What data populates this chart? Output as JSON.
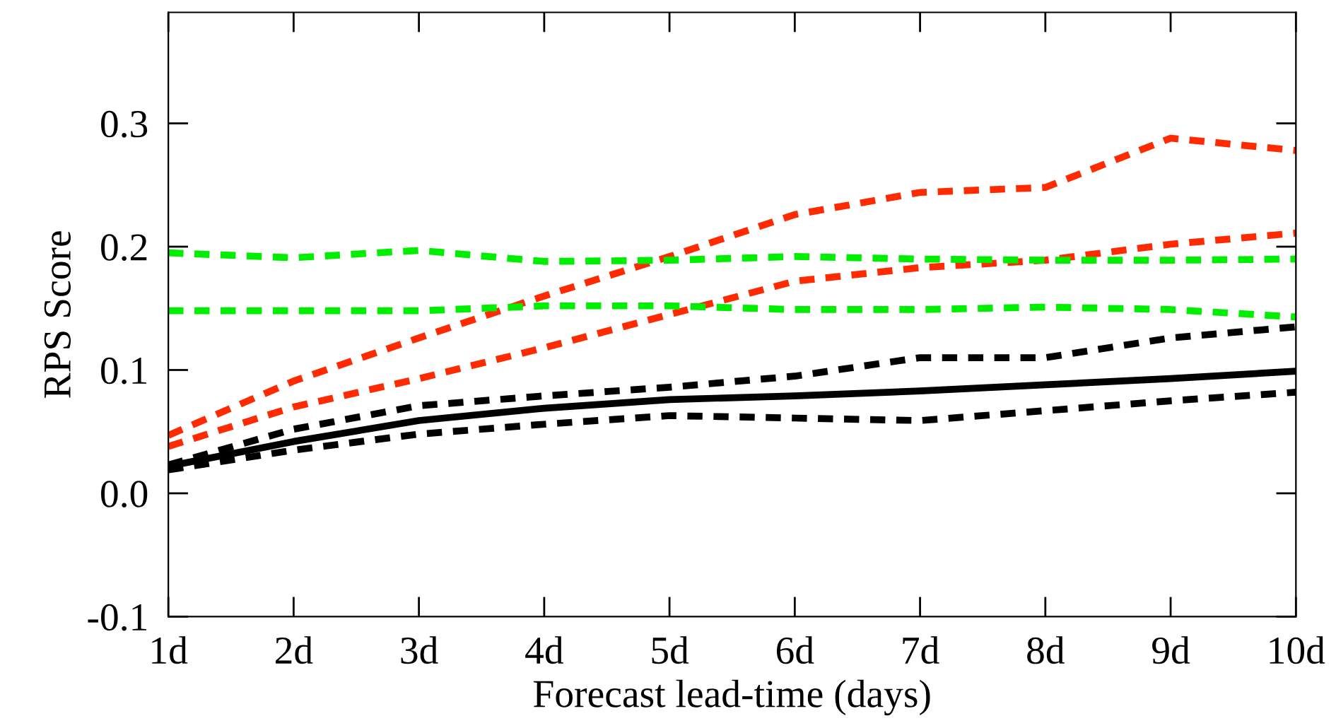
{
  "chart_data": {
    "type": "line",
    "xlabel": "Forecast lead-time (days)",
    "ylabel": "RPS Score",
    "categories": [
      "1d",
      "2d",
      "3d",
      "4d",
      "5d",
      "6d",
      "7d",
      "8d",
      "9d",
      "10d"
    ],
    "ylim": [
      -0.1,
      0.39
    ],
    "yticks": [
      {
        "value": -0.1,
        "label": "-0.1"
      },
      {
        "value": 0.0,
        "label": "0.0"
      },
      0.1,
      0.2,
      0.3
    ],
    "grid": false,
    "legend": false,
    "marker": "none",
    "series": [
      {
        "color": "#ff2a00",
        "line_style": "dashed",
        "values": [
          0.047,
          0.091,
          0.126,
          0.16,
          0.192,
          0.226,
          0.244,
          0.248,
          0.288,
          0.278
        ]
      },
      {
        "color": "#ff2a00",
        "line_style": "dashed",
        "values": [
          0.038,
          0.07,
          0.093,
          0.118,
          0.145,
          0.172,
          0.183,
          0.189,
          0.202,
          0.211
        ]
      },
      {
        "color": "#00ee00",
        "line_style": "dashed",
        "values": [
          0.195,
          0.191,
          0.197,
          0.188,
          0.189,
          0.192,
          0.19,
          0.189,
          0.189,
          0.19
        ]
      },
      {
        "color": "#00ee00",
        "line_style": "dashed",
        "values": [
          0.148,
          0.148,
          0.148,
          0.152,
          0.152,
          0.149,
          0.149,
          0.151,
          0.149,
          0.143
        ]
      },
      {
        "color": "#000000",
        "line_style": "dashed",
        "values": [
          0.023,
          0.052,
          0.071,
          0.079,
          0.086,
          0.095,
          0.11,
          0.11,
          0.126,
          0.135
        ]
      },
      {
        "color": "#000000",
        "line_style": "solid",
        "values": [
          0.022,
          0.042,
          0.059,
          0.069,
          0.076,
          0.079,
          0.083,
          0.088,
          0.093,
          0.099
        ]
      },
      {
        "color": "#000000",
        "line_style": "dashed",
        "values": [
          0.019,
          0.035,
          0.048,
          0.056,
          0.063,
          0.061,
          0.059,
          0.067,
          0.075,
          0.082
        ]
      }
    ]
  }
}
